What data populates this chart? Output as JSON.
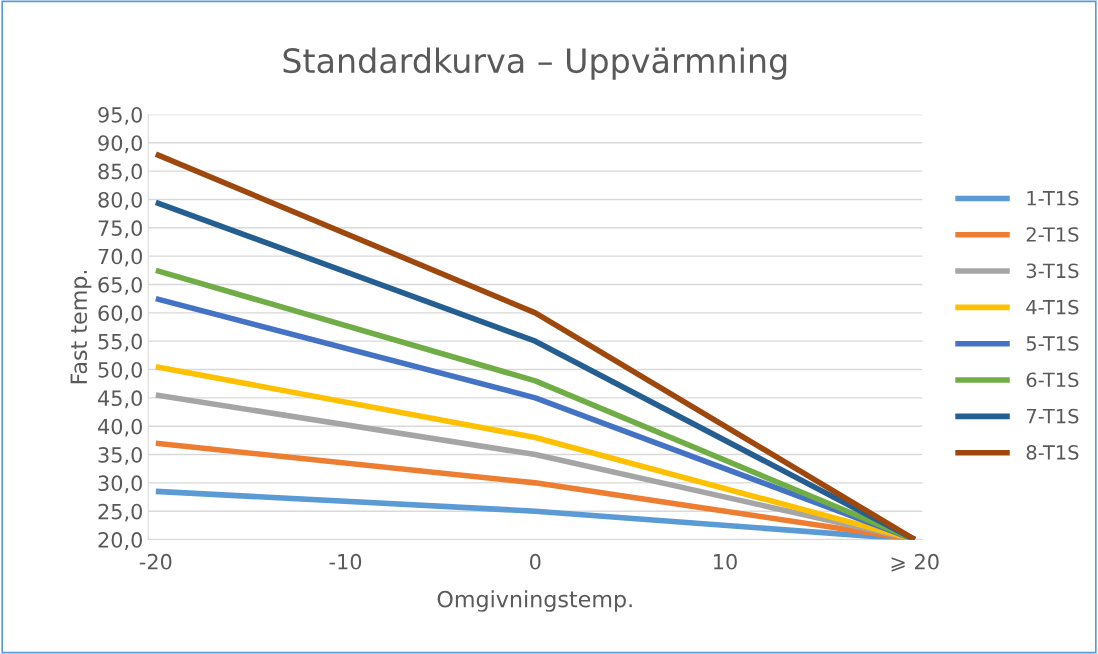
{
  "chart_data": {
    "type": "line",
    "title": "Standardkurva – Uppvärmning",
    "xlabel": "Omgivningstemp.",
    "ylabel": "Fast temp.",
    "x": [
      -20,
      0,
      20
    ],
    "xlim": [
      -20.4,
      20.4
    ],
    "xticks": [
      -20,
      -10,
      0,
      10,
      {
        "value": 20,
        "label": "⩾ 20"
      }
    ],
    "ylim": [
      20,
      95
    ],
    "yticks": [
      {
        "value": 20,
        "label": "20,0"
      },
      {
        "value": 25,
        "label": "25,0"
      },
      {
        "value": 30,
        "label": "30,0"
      },
      {
        "value": 35,
        "label": "35,0"
      },
      {
        "value": 40,
        "label": "40,0"
      },
      {
        "value": 45,
        "label": "45,0"
      },
      {
        "value": 50,
        "label": "50,0"
      },
      {
        "value": 55,
        "label": "55,0"
      },
      {
        "value": 60,
        "label": "60,0"
      },
      {
        "value": 65,
        "label": "65,0"
      },
      {
        "value": 70,
        "label": "70,0"
      },
      {
        "value": 75,
        "label": "75,0"
      },
      {
        "value": 80,
        "label": "80,0"
      },
      {
        "value": 85,
        "label": "85,0"
      },
      {
        "value": 90,
        "label": "90,0"
      },
      {
        "value": 95,
        "label": "95,0"
      }
    ],
    "grid": "y",
    "legend": "right",
    "marker": "none",
    "line_style": "solid",
    "series": [
      {
        "name": "1-T1S",
        "color": "#5b9bd5",
        "values": [
          28.5,
          25,
          20
        ]
      },
      {
        "name": "2-T1S",
        "color": "#ed7d31",
        "values": [
          37,
          30,
          20
        ]
      },
      {
        "name": "3-T1S",
        "color": "#a5a5a5",
        "values": [
          45.5,
          35,
          20
        ]
      },
      {
        "name": "4-T1S",
        "color": "#ffc000",
        "values": [
          50.5,
          38,
          20
        ]
      },
      {
        "name": "5-T1S",
        "color": "#4472c4",
        "values": [
          62.5,
          45,
          20
        ]
      },
      {
        "name": "6-T1S",
        "color": "#70ad47",
        "values": [
          67.5,
          48,
          20
        ]
      },
      {
        "name": "7-T1S",
        "color": "#255e91",
        "values": [
          79.5,
          55,
          20
        ]
      },
      {
        "name": "8-T1S",
        "color": "#9e480e",
        "values": [
          88,
          60,
          20
        ]
      }
    ]
  }
}
